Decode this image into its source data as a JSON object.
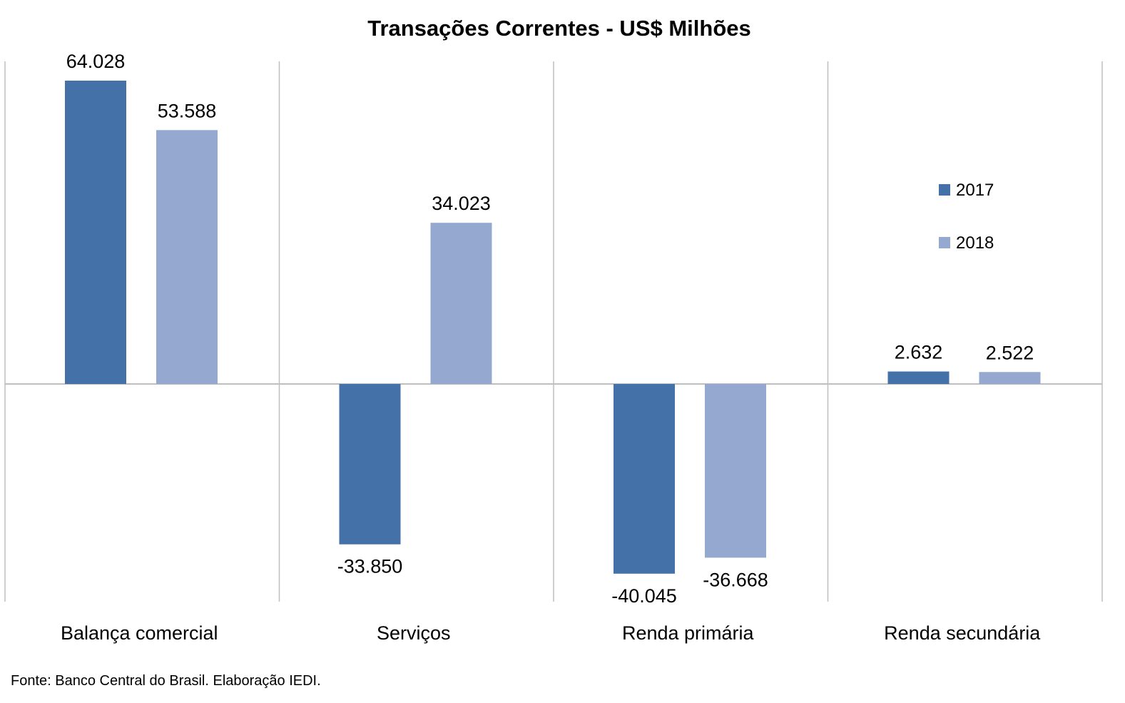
{
  "chart_data": {
    "type": "bar",
    "title": "Transações Correntes  - US$ Milhões",
    "categories": [
      "Balança comercial",
      "Serviços",
      "Renda primária",
      "Renda secundária"
    ],
    "series": [
      {
        "name": "2017",
        "color": "#4472a8",
        "values": [
          64028,
          -33850,
          -40045,
          2632
        ],
        "labels": [
          "64.028",
          "-33.850",
          "-40.045",
          "2.632"
        ]
      },
      {
        "name": "2018",
        "color": "#95a9d0",
        "values": [
          53588,
          34023,
          -36668,
          2522
        ],
        "labels": [
          "53.588",
          "34.023",
          "-36.668",
          "2.522"
        ]
      }
    ],
    "ylim": [
      -45000,
      68000
    ],
    "grid": "vertical category separators",
    "legend_position": "right"
  },
  "source_note": "Fonte: Banco Central do Brasil. Elaboração IEDI."
}
